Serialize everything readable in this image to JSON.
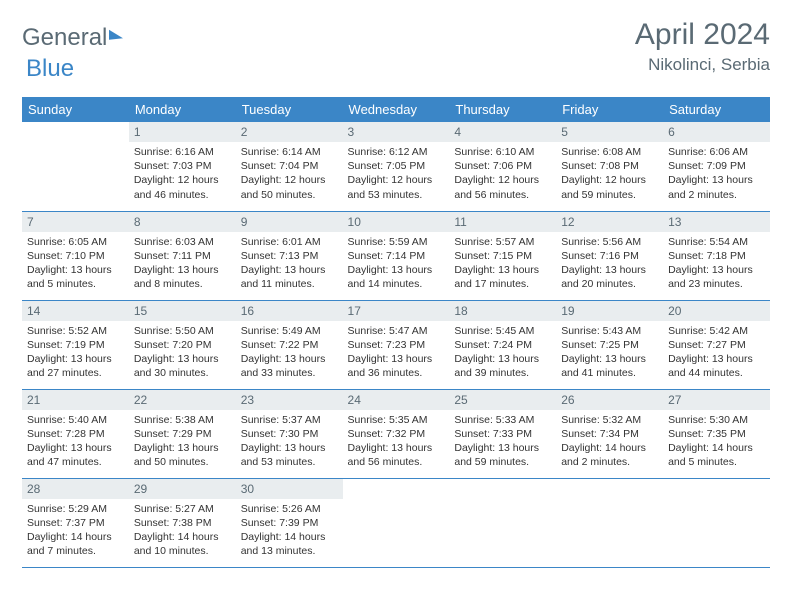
{
  "logo": {
    "part1": "General",
    "part2": "Blue"
  },
  "title": "April 2024",
  "location": "Nikolinci, Serbia",
  "colors": {
    "header_bg": "#3b86c7",
    "header_text": "#ffffff",
    "daynum_bg": "#e9edef",
    "text": "#333333",
    "muted": "#5a6a74",
    "row_border": "#3b86c7"
  },
  "weekdays": [
    "Sunday",
    "Monday",
    "Tuesday",
    "Wednesday",
    "Thursday",
    "Friday",
    "Saturday"
  ],
  "grid": [
    [
      null,
      {
        "n": "1",
        "sunrise": "6:16 AM",
        "sunset": "7:03 PM",
        "daylight": "12 hours and 46 minutes."
      },
      {
        "n": "2",
        "sunrise": "6:14 AM",
        "sunset": "7:04 PM",
        "daylight": "12 hours and 50 minutes."
      },
      {
        "n": "3",
        "sunrise": "6:12 AM",
        "sunset": "7:05 PM",
        "daylight": "12 hours and 53 minutes."
      },
      {
        "n": "4",
        "sunrise": "6:10 AM",
        "sunset": "7:06 PM",
        "daylight": "12 hours and 56 minutes."
      },
      {
        "n": "5",
        "sunrise": "6:08 AM",
        "sunset": "7:08 PM",
        "daylight": "12 hours and 59 minutes."
      },
      {
        "n": "6",
        "sunrise": "6:06 AM",
        "sunset": "7:09 PM",
        "daylight": "13 hours and 2 minutes."
      }
    ],
    [
      {
        "n": "7",
        "sunrise": "6:05 AM",
        "sunset": "7:10 PM",
        "daylight": "13 hours and 5 minutes."
      },
      {
        "n": "8",
        "sunrise": "6:03 AM",
        "sunset": "7:11 PM",
        "daylight": "13 hours and 8 minutes."
      },
      {
        "n": "9",
        "sunrise": "6:01 AM",
        "sunset": "7:13 PM",
        "daylight": "13 hours and 11 minutes."
      },
      {
        "n": "10",
        "sunrise": "5:59 AM",
        "sunset": "7:14 PM",
        "daylight": "13 hours and 14 minutes."
      },
      {
        "n": "11",
        "sunrise": "5:57 AM",
        "sunset": "7:15 PM",
        "daylight": "13 hours and 17 minutes."
      },
      {
        "n": "12",
        "sunrise": "5:56 AM",
        "sunset": "7:16 PM",
        "daylight": "13 hours and 20 minutes."
      },
      {
        "n": "13",
        "sunrise": "5:54 AM",
        "sunset": "7:18 PM",
        "daylight": "13 hours and 23 minutes."
      }
    ],
    [
      {
        "n": "14",
        "sunrise": "5:52 AM",
        "sunset": "7:19 PM",
        "daylight": "13 hours and 27 minutes."
      },
      {
        "n": "15",
        "sunrise": "5:50 AM",
        "sunset": "7:20 PM",
        "daylight": "13 hours and 30 minutes."
      },
      {
        "n": "16",
        "sunrise": "5:49 AM",
        "sunset": "7:22 PM",
        "daylight": "13 hours and 33 minutes."
      },
      {
        "n": "17",
        "sunrise": "5:47 AM",
        "sunset": "7:23 PM",
        "daylight": "13 hours and 36 minutes."
      },
      {
        "n": "18",
        "sunrise": "5:45 AM",
        "sunset": "7:24 PM",
        "daylight": "13 hours and 39 minutes."
      },
      {
        "n": "19",
        "sunrise": "5:43 AM",
        "sunset": "7:25 PM",
        "daylight": "13 hours and 41 minutes."
      },
      {
        "n": "20",
        "sunrise": "5:42 AM",
        "sunset": "7:27 PM",
        "daylight": "13 hours and 44 minutes."
      }
    ],
    [
      {
        "n": "21",
        "sunrise": "5:40 AM",
        "sunset": "7:28 PM",
        "daylight": "13 hours and 47 minutes."
      },
      {
        "n": "22",
        "sunrise": "5:38 AM",
        "sunset": "7:29 PM",
        "daylight": "13 hours and 50 minutes."
      },
      {
        "n": "23",
        "sunrise": "5:37 AM",
        "sunset": "7:30 PM",
        "daylight": "13 hours and 53 minutes."
      },
      {
        "n": "24",
        "sunrise": "5:35 AM",
        "sunset": "7:32 PM",
        "daylight": "13 hours and 56 minutes."
      },
      {
        "n": "25",
        "sunrise": "5:33 AM",
        "sunset": "7:33 PM",
        "daylight": "13 hours and 59 minutes."
      },
      {
        "n": "26",
        "sunrise": "5:32 AM",
        "sunset": "7:34 PM",
        "daylight": "14 hours and 2 minutes."
      },
      {
        "n": "27",
        "sunrise": "5:30 AM",
        "sunset": "7:35 PM",
        "daylight": "14 hours and 5 minutes."
      }
    ],
    [
      {
        "n": "28",
        "sunrise": "5:29 AM",
        "sunset": "7:37 PM",
        "daylight": "14 hours and 7 minutes."
      },
      {
        "n": "29",
        "sunrise": "5:27 AM",
        "sunset": "7:38 PM",
        "daylight": "14 hours and 10 minutes."
      },
      {
        "n": "30",
        "sunrise": "5:26 AM",
        "sunset": "7:39 PM",
        "daylight": "14 hours and 13 minutes."
      },
      null,
      null,
      null,
      null
    ]
  ],
  "labels": {
    "sunrise": "Sunrise:",
    "sunset": "Sunset:",
    "daylight": "Daylight:"
  }
}
